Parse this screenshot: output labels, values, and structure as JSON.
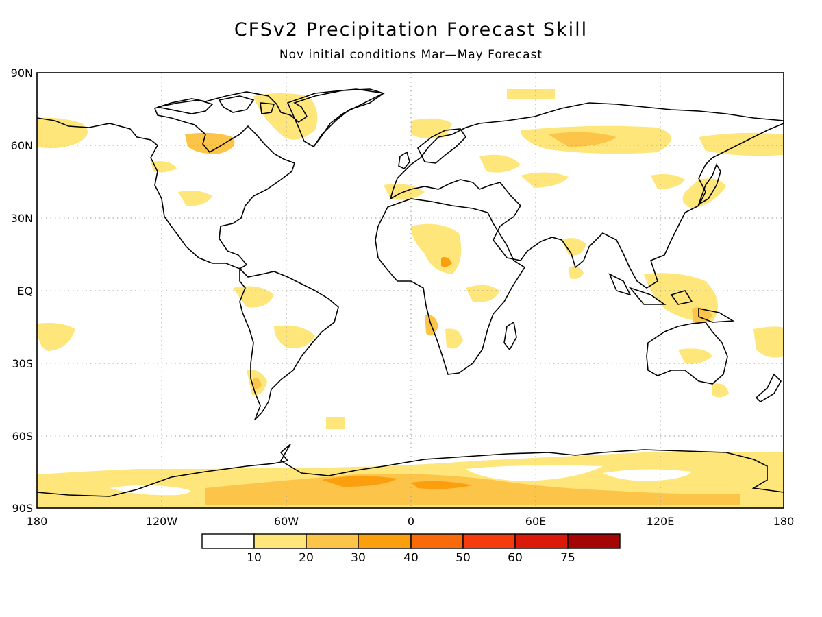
{
  "title": "CFSv2 Precipitation Forecast Skill",
  "subtitle": "Nov initial conditions  Mar—May Forecast",
  "lat_labels": [
    "90N",
    "60N",
    "30N",
    "EQ",
    "30S",
    "60S",
    "90S"
  ],
  "lon_labels": [
    "180",
    "120W",
    "60W",
    "0",
    "60E",
    "120E",
    "180"
  ],
  "colorbar": {
    "labels": [
      "10",
      "20",
      "30",
      "40",
      "50",
      "60",
      "75"
    ],
    "colors": [
      "#ffffff",
      "#fee67a",
      "#fdc44a",
      "#fc9f0e",
      "#f86a0a",
      "#f43c0c",
      "#dc1a0a",
      "#a50605"
    ]
  },
  "skill_colors": {
    "c1": "#fee67a",
    "c2": "#fdc44a",
    "c3": "#fc9f0e",
    "c4": "#f86a0a"
  },
  "gridline_color": "#999999",
  "coastline_color": "#000000"
}
